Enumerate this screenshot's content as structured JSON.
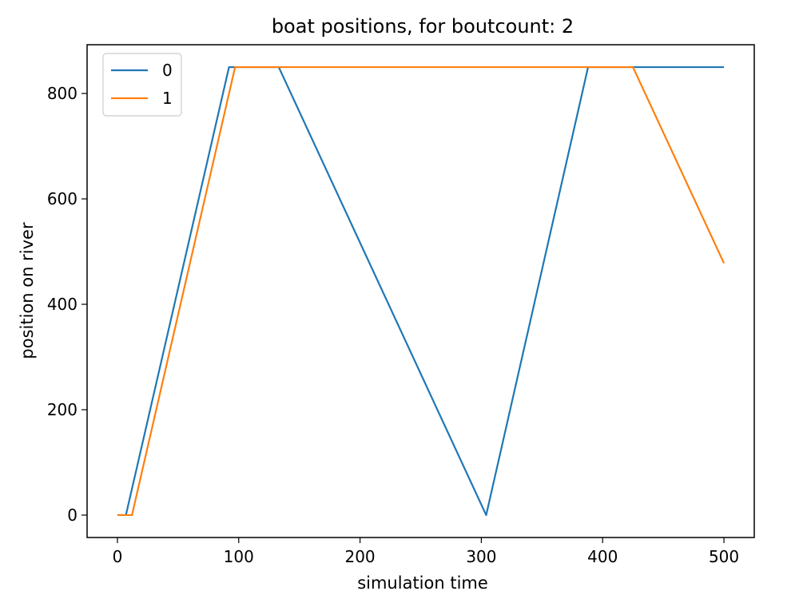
{
  "chart_data": {
    "type": "line",
    "title": "boat positions, for boutcount: 2",
    "xlabel": "simulation time",
    "ylabel": "position on river",
    "xlim": [
      -25,
      525
    ],
    "ylim": [
      -42.5,
      892.5
    ],
    "xticks": [
      0,
      100,
      200,
      300,
      400,
      500
    ],
    "yticks": [
      0,
      200,
      400,
      600,
      800
    ],
    "grid": false,
    "legend_position": "top-left",
    "series": [
      {
        "name": "0",
        "color": "#1f77b4",
        "x": [
          0,
          7,
          92,
          133,
          304,
          388,
          500
        ],
        "y": [
          0,
          0,
          850,
          850,
          0,
          850,
          850
        ]
      },
      {
        "name": "1",
        "color": "#ff7f0e",
        "x": [
          0,
          12,
          97,
          425,
          500
        ],
        "y": [
          0,
          0,
          850,
          850,
          478
        ]
      }
    ]
  }
}
